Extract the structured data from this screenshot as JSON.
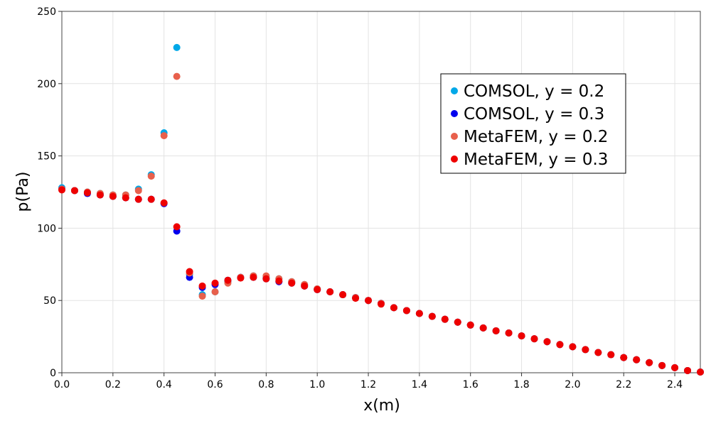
{
  "chart_data": {
    "type": "scatter",
    "xlabel": "x(m)",
    "ylabel": "p(Pa)",
    "xlim": [
      0,
      2.5
    ],
    "ylim": [
      0,
      250
    ],
    "xticks": [
      "0.0",
      "0.2",
      "0.4",
      "0.6",
      "0.8",
      "1.0",
      "1.2",
      "1.4",
      "1.6",
      "1.8",
      "2.0",
      "2.2",
      "2.4"
    ],
    "yticks": [
      "0",
      "50",
      "100",
      "150",
      "200",
      "250"
    ],
    "grid": true,
    "legend_position": "top-right",
    "x": [
      0.0,
      0.05,
      0.1,
      0.15,
      0.2,
      0.25,
      0.3,
      0.35,
      0.4,
      0.45,
      0.5,
      0.55,
      0.6,
      0.65,
      0.7,
      0.75,
      0.8,
      0.85,
      0.9,
      0.95,
      1.0,
      1.05,
      1.1,
      1.15,
      1.2,
      1.25,
      1.3,
      1.35,
      1.4,
      1.45,
      1.5,
      1.55,
      1.6,
      1.65,
      1.7,
      1.75,
      1.8,
      1.85,
      1.9,
      1.95,
      2.0,
      2.05,
      2.1,
      2.15,
      2.2,
      2.25,
      2.3,
      2.35,
      2.4,
      2.45,
      2.5
    ],
    "series": [
      {
        "name": "COMSOL, y = 0.2",
        "color": "#00a8e8",
        "values": [
          128,
          126,
          125,
          124,
          123,
          123,
          127,
          137,
          166,
          225,
          68,
          54,
          56,
          63,
          66,
          67,
          66,
          65,
          63,
          61,
          58,
          56,
          54,
          52,
          50,
          48,
          45,
          43,
          41,
          39,
          37,
          35,
          33,
          31,
          29,
          27.5,
          25.5,
          23.5,
          21.5,
          19.5,
          18,
          16,
          14,
          12.5,
          10.5,
          9,
          7,
          5,
          3.5,
          1.5,
          0.5
        ]
      },
      {
        "name": "COMSOL, y = 0.3",
        "color": "#0000ee",
        "values": [
          127,
          126,
          124,
          123,
          122,
          121,
          120,
          120,
          117,
          98,
          66,
          59,
          61,
          64,
          66,
          66,
          65,
          63,
          62,
          60,
          57.5,
          56,
          54,
          52,
          50,
          48,
          45,
          43,
          41,
          39,
          37,
          35,
          33,
          31,
          29,
          27.5,
          25.5,
          23.5,
          21.5,
          19.5,
          18,
          16,
          14,
          12.5,
          10.5,
          9,
          7,
          5,
          3.5,
          1.5,
          0.5
        ]
      },
      {
        "name": "MetaFEM, y = 0.2",
        "color": "#e8604c",
        "values": [
          127,
          126,
          125,
          124,
          123,
          123,
          126,
          136,
          164,
          205,
          69,
          53,
          56,
          62,
          66,
          67,
          67,
          65,
          63,
          61,
          58,
          56,
          54,
          52,
          50,
          48,
          45,
          43,
          41,
          39,
          37,
          35,
          33,
          31,
          29,
          27.5,
          25.5,
          23.5,
          21.5,
          19.5,
          18,
          16,
          14,
          12.5,
          10.5,
          9,
          7,
          5,
          3.5,
          1.5,
          0.5
        ]
      },
      {
        "name": "MetaFEM, y = 0.3",
        "color": "#ee0000",
        "values": [
          126.5,
          126,
          124.5,
          123,
          122,
          121,
          120,
          120,
          117.5,
          101,
          70,
          60,
          62,
          64,
          65.5,
          66,
          65,
          63.5,
          62,
          60,
          57.5,
          56,
          54,
          51.5,
          50,
          47.5,
          45,
          43,
          41,
          39,
          37,
          35,
          33,
          31,
          29,
          27.5,
          25.5,
          23.5,
          21.5,
          19.5,
          18,
          16,
          14,
          12.5,
          10.5,
          9,
          7,
          5,
          3.5,
          1.5,
          0.5
        ]
      }
    ]
  }
}
